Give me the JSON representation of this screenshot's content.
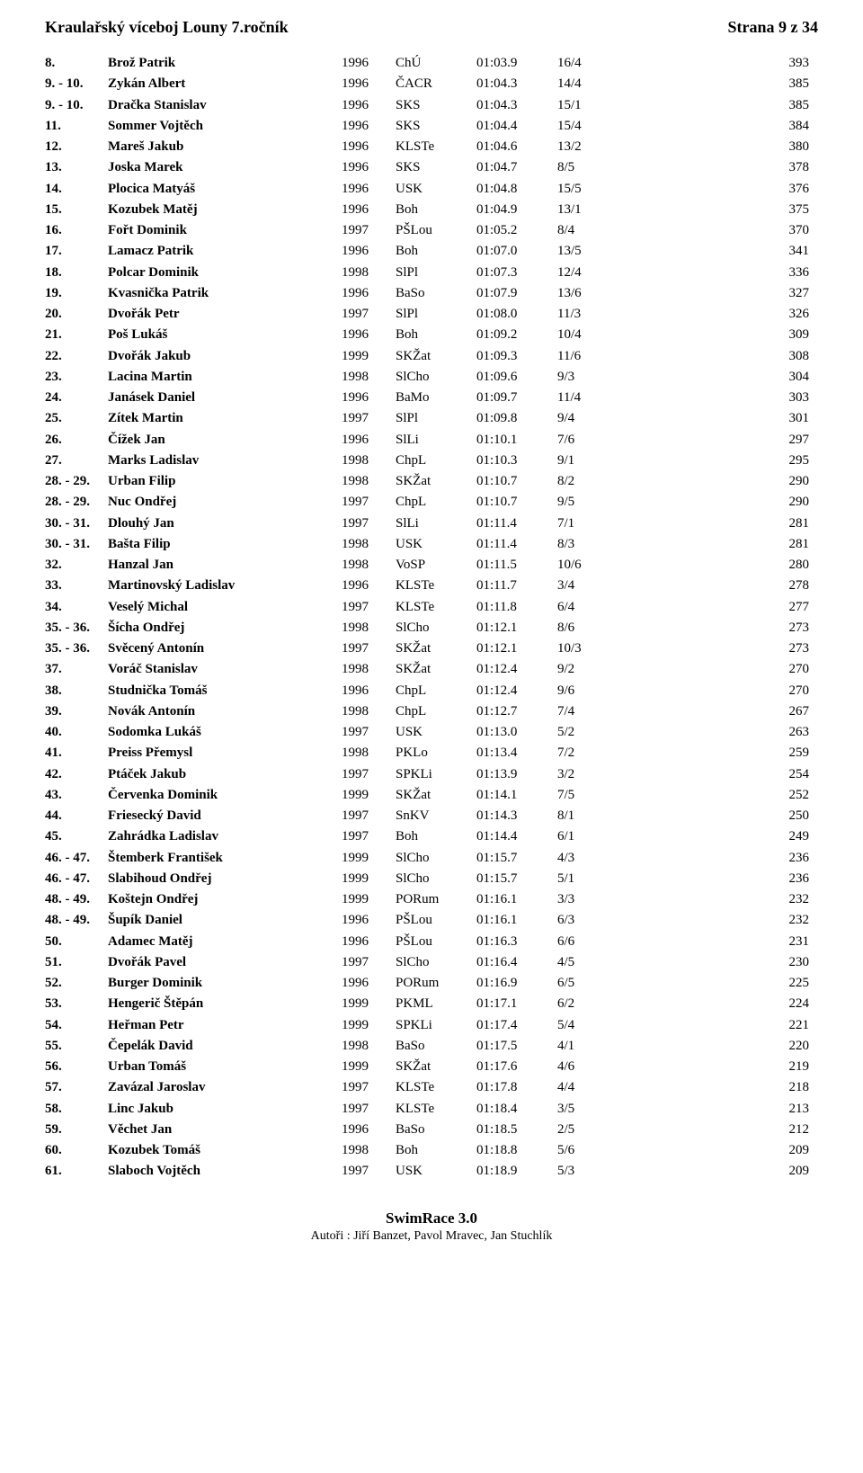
{
  "header": {
    "title": "Kraulařský víceboj Louny 7.ročník",
    "page": "Strana 9 z 34"
  },
  "footer": {
    "main": "SwimRace 3.0",
    "sub": "Autoři : Jiří Banzet, Pavol Mravec, Jan Stuchlík"
  },
  "rows": [
    {
      "rank": "8.",
      "name": "Brož Patrik",
      "year": "1996",
      "club": "ChÚ",
      "time": "01:03.9",
      "frac": "16/4",
      "pts": "393"
    },
    {
      "rank": "9. - 10.",
      "name": "Zykán Albert",
      "year": "1996",
      "club": "ČACR",
      "time": "01:04.3",
      "frac": "14/4",
      "pts": "385"
    },
    {
      "rank": "9. - 10.",
      "name": "Dračka Stanislav",
      "year": "1996",
      "club": "SKS",
      "time": "01:04.3",
      "frac": "15/1",
      "pts": "385"
    },
    {
      "rank": "11.",
      "name": "Sommer Vojtěch",
      "year": "1996",
      "club": "SKS",
      "time": "01:04.4",
      "frac": "15/4",
      "pts": "384"
    },
    {
      "rank": "12.",
      "name": "Mareš Jakub",
      "year": "1996",
      "club": "KLSTe",
      "time": "01:04.6",
      "frac": "13/2",
      "pts": "380"
    },
    {
      "rank": "13.",
      "name": "Joska Marek",
      "year": "1996",
      "club": "SKS",
      "time": "01:04.7",
      "frac": "8/5",
      "pts": "378"
    },
    {
      "rank": "14.",
      "name": "Plocica Matyáš",
      "year": "1996",
      "club": "USK",
      "time": "01:04.8",
      "frac": "15/5",
      "pts": "376"
    },
    {
      "rank": "15.",
      "name": "Kozubek Matěj",
      "year": "1996",
      "club": "Boh",
      "time": "01:04.9",
      "frac": "13/1",
      "pts": "375"
    },
    {
      "rank": "16.",
      "name": "Fořt Dominik",
      "year": "1997",
      "club": "PŠLou",
      "time": "01:05.2",
      "frac": "8/4",
      "pts": "370"
    },
    {
      "rank": "17.",
      "name": "Lamacz Patrik",
      "year": "1996",
      "club": "Boh",
      "time": "01:07.0",
      "frac": "13/5",
      "pts": "341"
    },
    {
      "rank": "18.",
      "name": "Polcar Dominik",
      "year": "1998",
      "club": "SlPl",
      "time": "01:07.3",
      "frac": "12/4",
      "pts": "336"
    },
    {
      "rank": "19.",
      "name": "Kvasnička Patrik",
      "year": "1996",
      "club": "BaSo",
      "time": "01:07.9",
      "frac": "13/6",
      "pts": "327"
    },
    {
      "rank": "20.",
      "name": "Dvořák Petr",
      "year": "1997",
      "club": "SlPl",
      "time": "01:08.0",
      "frac": "11/3",
      "pts": "326"
    },
    {
      "rank": "21.",
      "name": "Poš Lukáš",
      "year": "1996",
      "club": "Boh",
      "time": "01:09.2",
      "frac": "10/4",
      "pts": "309"
    },
    {
      "rank": "22.",
      "name": "Dvořák Jakub",
      "year": "1999",
      "club": "SKŽat",
      "time": "01:09.3",
      "frac": "11/6",
      "pts": "308"
    },
    {
      "rank": "23.",
      "name": "Lacina Martin",
      "year": "1998",
      "club": "SlCho",
      "time": "01:09.6",
      "frac": "9/3",
      "pts": "304"
    },
    {
      "rank": "24.",
      "name": "Janásek Daniel",
      "year": "1996",
      "club": "BaMo",
      "time": "01:09.7",
      "frac": "11/4",
      "pts": "303"
    },
    {
      "rank": "25.",
      "name": "Zítek Martin",
      "year": "1997",
      "club": "SlPl",
      "time": "01:09.8",
      "frac": "9/4",
      "pts": "301"
    },
    {
      "rank": "26.",
      "name": "Čížek Jan",
      "year": "1996",
      "club": "SlLi",
      "time": "01:10.1",
      "frac": "7/6",
      "pts": "297"
    },
    {
      "rank": "27.",
      "name": "Marks Ladislav",
      "year": "1998",
      "club": "ChpL",
      "time": "01:10.3",
      "frac": "9/1",
      "pts": "295"
    },
    {
      "rank": "28. - 29.",
      "name": "Urban Filip",
      "year": "1998",
      "club": "SKŽat",
      "time": "01:10.7",
      "frac": "8/2",
      "pts": "290"
    },
    {
      "rank": "28. - 29.",
      "name": "Nuc Ondřej",
      "year": "1997",
      "club": "ChpL",
      "time": "01:10.7",
      "frac": "9/5",
      "pts": "290"
    },
    {
      "rank": "30. - 31.",
      "name": "Dlouhý Jan",
      "year": "1997",
      "club": "SlLi",
      "time": "01:11.4",
      "frac": "7/1",
      "pts": "281"
    },
    {
      "rank": "30. - 31.",
      "name": "Bašta Filip",
      "year": "1998",
      "club": "USK",
      "time": "01:11.4",
      "frac": "8/3",
      "pts": "281"
    },
    {
      "rank": "32.",
      "name": "Hanzal Jan",
      "year": "1998",
      "club": "VoSP",
      "time": "01:11.5",
      "frac": "10/6",
      "pts": "280"
    },
    {
      "rank": "33.",
      "name": "Martinovský Ladislav",
      "year": "1996",
      "club": "KLSTe",
      "time": "01:11.7",
      "frac": "3/4",
      "pts": "278"
    },
    {
      "rank": "34.",
      "name": "Veselý Michal",
      "year": "1997",
      "club": "KLSTe",
      "time": "01:11.8",
      "frac": "6/4",
      "pts": "277"
    },
    {
      "rank": "35. - 36.",
      "name": "Šícha Ondřej",
      "year": "1998",
      "club": "SlCho",
      "time": "01:12.1",
      "frac": "8/6",
      "pts": "273"
    },
    {
      "rank": "35. - 36.",
      "name": "Svěcený Antonín",
      "year": "1997",
      "club": "SKŽat",
      "time": "01:12.1",
      "frac": "10/3",
      "pts": "273"
    },
    {
      "rank": "37.",
      "name": "Voráč Stanislav",
      "year": "1998",
      "club": "SKŽat",
      "time": "01:12.4",
      "frac": "9/2",
      "pts": "270"
    },
    {
      "rank": "38.",
      "name": "Studnička Tomáš",
      "year": "1996",
      "club": "ChpL",
      "time": "01:12.4",
      "frac": "9/6",
      "pts": "270"
    },
    {
      "rank": "39.",
      "name": "Novák Antonín",
      "year": "1998",
      "club": "ChpL",
      "time": "01:12.7",
      "frac": "7/4",
      "pts": "267"
    },
    {
      "rank": "40.",
      "name": "Sodomka Lukáš",
      "year": "1997",
      "club": "USK",
      "time": "01:13.0",
      "frac": "5/2",
      "pts": "263"
    },
    {
      "rank": "41.",
      "name": "Preiss Přemysl",
      "year": "1998",
      "club": "PKLo",
      "time": "01:13.4",
      "frac": "7/2",
      "pts": "259"
    },
    {
      "rank": "42.",
      "name": "Ptáček Jakub",
      "year": "1997",
      "club": "SPKLi",
      "time": "01:13.9",
      "frac": "3/2",
      "pts": "254"
    },
    {
      "rank": "43.",
      "name": "Červenka Dominik",
      "year": "1999",
      "club": "SKŽat",
      "time": "01:14.1",
      "frac": "7/5",
      "pts": "252"
    },
    {
      "rank": "44.",
      "name": "Friesecký David",
      "year": "1997",
      "club": "SnKV",
      "time": "01:14.3",
      "frac": "8/1",
      "pts": "250"
    },
    {
      "rank": "45.",
      "name": "Zahrádka Ladislav",
      "year": "1997",
      "club": "Boh",
      "time": "01:14.4",
      "frac": "6/1",
      "pts": "249"
    },
    {
      "rank": "46. - 47.",
      "name": "Štemberk František",
      "year": "1999",
      "club": "SlCho",
      "time": "01:15.7",
      "frac": "4/3",
      "pts": "236"
    },
    {
      "rank": "46. - 47.",
      "name": "Slabihoud Ondřej",
      "year": "1999",
      "club": "SlCho",
      "time": "01:15.7",
      "frac": "5/1",
      "pts": "236"
    },
    {
      "rank": "48. - 49.",
      "name": "Koštejn Ondřej",
      "year": "1999",
      "club": "PORum",
      "time": "01:16.1",
      "frac": "3/3",
      "pts": "232"
    },
    {
      "rank": "48. - 49.",
      "name": "Šupík Daniel",
      "year": "1996",
      "club": "PŠLou",
      "time": "01:16.1",
      "frac": "6/3",
      "pts": "232"
    },
    {
      "rank": "50.",
      "name": "Adamec Matěj",
      "year": "1996",
      "club": "PŠLou",
      "time": "01:16.3",
      "frac": "6/6",
      "pts": "231"
    },
    {
      "rank": "51.",
      "name": "Dvořák Pavel",
      "year": "1997",
      "club": "SlCho",
      "time": "01:16.4",
      "frac": "4/5",
      "pts": "230"
    },
    {
      "rank": "52.",
      "name": "Burger Dominik",
      "year": "1996",
      "club": "PORum",
      "time": "01:16.9",
      "frac": "6/5",
      "pts": "225"
    },
    {
      "rank": "53.",
      "name": "Hengerič Štěpán",
      "year": "1999",
      "club": "PKML",
      "time": "01:17.1",
      "frac": "6/2",
      "pts": "224"
    },
    {
      "rank": "54.",
      "name": "Heřman Petr",
      "year": "1999",
      "club": "SPKLi",
      "time": "01:17.4",
      "frac": "5/4",
      "pts": "221"
    },
    {
      "rank": "55.",
      "name": "Čepelák David",
      "year": "1998",
      "club": "BaSo",
      "time": "01:17.5",
      "frac": "4/1",
      "pts": "220"
    },
    {
      "rank": "56.",
      "name": "Urban Tomáš",
      "year": "1999",
      "club": "SKŽat",
      "time": "01:17.6",
      "frac": "4/6",
      "pts": "219"
    },
    {
      "rank": "57.",
      "name": "Zavázal Jaroslav",
      "year": "1997",
      "club": "KLSTe",
      "time": "01:17.8",
      "frac": "4/4",
      "pts": "218"
    },
    {
      "rank": "58.",
      "name": "Linc Jakub",
      "year": "1997",
      "club": "KLSTe",
      "time": "01:18.4",
      "frac": "3/5",
      "pts": "213"
    },
    {
      "rank": "59.",
      "name": "Věchet Jan",
      "year": "1996",
      "club": "BaSo",
      "time": "01:18.5",
      "frac": "2/5",
      "pts": "212"
    },
    {
      "rank": "60.",
      "name": "Kozubek Tomáš",
      "year": "1998",
      "club": "Boh",
      "time": "01:18.8",
      "frac": "5/6",
      "pts": "209"
    },
    {
      "rank": "61.",
      "name": "Slaboch Vojtěch",
      "year": "1997",
      "club": "USK",
      "time": "01:18.9",
      "frac": "5/3",
      "pts": "209"
    }
  ]
}
